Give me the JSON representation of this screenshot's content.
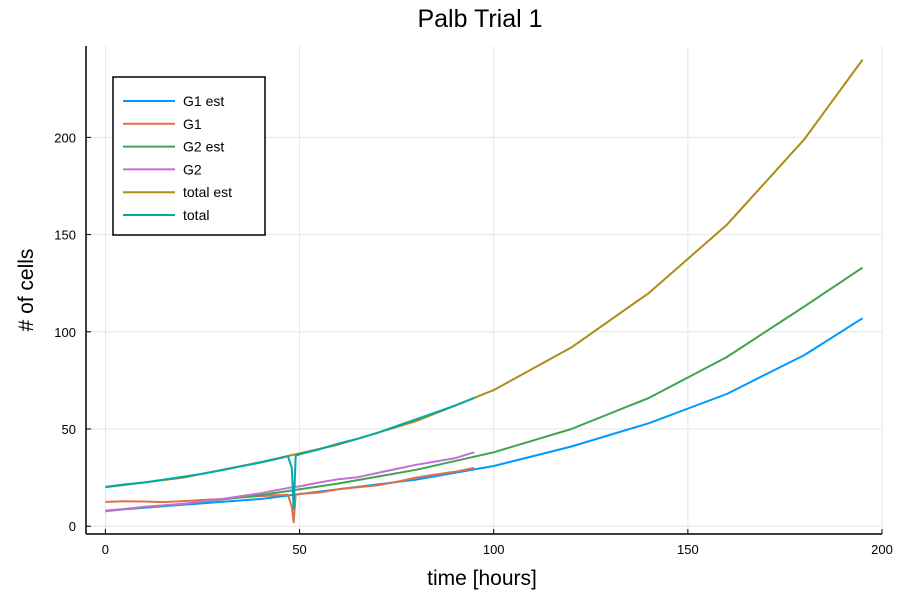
{
  "chart_data": {
    "type": "line",
    "title": "Palb Trial 1",
    "xlabel": "time [hours]",
    "ylabel": "# of cells",
    "xlim": [
      -5,
      200
    ],
    "ylim": [
      -4,
      247
    ],
    "xticks": [
      0,
      50,
      100,
      150,
      200
    ],
    "yticks": [
      0,
      50,
      100,
      150,
      200
    ],
    "grid": true,
    "legend_position": "top-left",
    "series": [
      {
        "name": "G1 est",
        "color": "#009AFA",
        "x": [
          0,
          20,
          40,
          60,
          80,
          100,
          120,
          140,
          160,
          180,
          195
        ],
        "y": [
          8,
          11,
          14,
          19,
          24,
          31,
          41,
          53,
          68,
          88,
          107
        ]
      },
      {
        "name": "G1",
        "color": "#E36F47",
        "x": [
          0,
          5,
          10,
          15,
          20,
          25,
          30,
          35,
          40,
          45,
          47,
          48,
          48.5,
          49,
          50,
          55,
          60,
          65,
          70,
          75,
          80,
          85,
          90,
          95
        ],
        "y": [
          12.5,
          12.8,
          12.7,
          12.4,
          12.9,
          13.5,
          14.0,
          14.8,
          15.5,
          16.0,
          16.2,
          10,
          2,
          16.3,
          16.6,
          17.3,
          19.0,
          20.0,
          21.0,
          22.8,
          25.0,
          26.6,
          28.0,
          30.0
        ]
      },
      {
        "name": "G2 est",
        "color": "#3EA44E",
        "x": [
          0,
          20,
          40,
          60,
          80,
          100,
          120,
          140,
          160,
          180,
          195
        ],
        "y": [
          8,
          11.5,
          16,
          22,
          29,
          38,
          50,
          66,
          87,
          113,
          133
        ]
      },
      {
        "name": "G2",
        "color": "#C271D2",
        "x": [
          0,
          10,
          20,
          30,
          40,
          48,
          50,
          55,
          60,
          65,
          70,
          75,
          80,
          85,
          90,
          95
        ],
        "y": [
          7.6,
          10,
          11.5,
          14,
          17,
          20,
          20.5,
          22.5,
          24.2,
          25.2,
          27.4,
          29.5,
          31.6,
          33.3,
          35.0,
          38.0
        ]
      },
      {
        "name": "total est",
        "color": "#AC8D18",
        "x": [
          0,
          20,
          40,
          60,
          80,
          100,
          120,
          140,
          160,
          180,
          195
        ],
        "y": [
          20,
          25,
          33,
          42,
          54,
          70,
          92,
          120,
          155,
          199,
          240
        ]
      },
      {
        "name": "total",
        "color": "#00A9AD",
        "x": [
          0,
          5,
          10,
          15,
          20,
          25,
          30,
          35,
          40,
          45,
          47,
          48,
          48.5,
          49,
          50,
          55,
          60,
          65,
          70,
          75,
          80,
          85,
          90,
          95
        ],
        "y": [
          20.2,
          21.5,
          22.5,
          24.0,
          25.4,
          27.0,
          28.8,
          30.8,
          32.8,
          35.0,
          36.0,
          30,
          9,
          36.2,
          37.0,
          39.5,
          42.5,
          45.0,
          48.0,
          51.5,
          55.0,
          58.5,
          62.0,
          66.0
        ]
      }
    ]
  }
}
